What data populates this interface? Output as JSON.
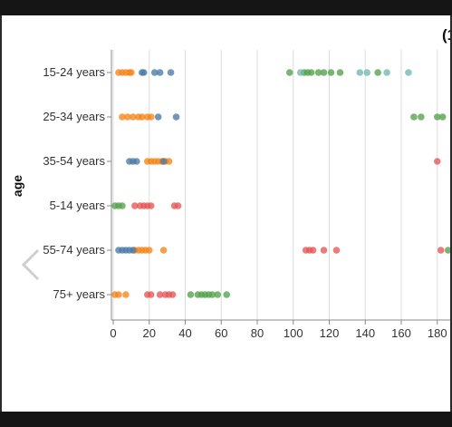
{
  "chart_data": {
    "type": "scatter",
    "title": "(1",
    "ylabel": "age",
    "xlabel": "",
    "x_ticks": [
      0,
      20,
      40,
      60,
      80,
      100,
      120,
      140,
      160,
      180
    ],
    "xlim": [
      0,
      188
    ],
    "grid": true,
    "categories": [
      "15-24 years",
      "25-34 years",
      "35-54 years",
      "5-14 years",
      "55-74 years",
      "75+ years"
    ],
    "series": [
      {
        "color": "#f58518",
        "points": [
          {
            "y": "15-24 years",
            "x": 3
          },
          {
            "y": "15-24 years",
            "x": 5
          },
          {
            "y": "15-24 years",
            "x": 7
          },
          {
            "y": "15-24 years",
            "x": 9
          },
          {
            "y": "15-24 years",
            "x": 10
          },
          {
            "y": "25-34 years",
            "x": 5
          },
          {
            "y": "25-34 years",
            "x": 8
          },
          {
            "y": "25-34 years",
            "x": 11
          },
          {
            "y": "25-34 years",
            "x": 14
          },
          {
            "y": "25-34 years",
            "x": 16
          },
          {
            "y": "25-34 years",
            "x": 19
          },
          {
            "y": "25-34 years",
            "x": 21
          },
          {
            "y": "35-54 years",
            "x": 19
          },
          {
            "y": "35-54 years",
            "x": 21
          },
          {
            "y": "35-54 years",
            "x": 23
          },
          {
            "y": "35-54 years",
            "x": 25
          },
          {
            "y": "35-54 years",
            "x": 27
          },
          {
            "y": "35-54 years",
            "x": 29
          },
          {
            "y": "35-54 years",
            "x": 31
          },
          {
            "y": "55-74 years",
            "x": 12
          },
          {
            "y": "55-74 years",
            "x": 14
          },
          {
            "y": "55-74 years",
            "x": 16
          },
          {
            "y": "55-74 years",
            "x": 18
          },
          {
            "y": "55-74 years",
            "x": 20
          },
          {
            "y": "55-74 years",
            "x": 28
          },
          {
            "y": "75+ years",
            "x": 1
          },
          {
            "y": "75+ years",
            "x": 3
          },
          {
            "y": "75+ years",
            "x": 7
          }
        ]
      },
      {
        "color": "#4c78a8",
        "points": [
          {
            "y": "15-24 years",
            "x": 16
          },
          {
            "y": "15-24 years",
            "x": 17
          },
          {
            "y": "15-24 years",
            "x": 23
          },
          {
            "y": "15-24 years",
            "x": 26
          },
          {
            "y": "15-24 years",
            "x": 32
          },
          {
            "y": "25-34 years",
            "x": 25
          },
          {
            "y": "25-34 years",
            "x": 35
          },
          {
            "y": "35-54 years",
            "x": 9
          },
          {
            "y": "35-54 years",
            "x": 11
          },
          {
            "y": "35-54 years",
            "x": 13
          },
          {
            "y": "35-54 years",
            "x": 28
          },
          {
            "y": "55-74 years",
            "x": 3
          },
          {
            "y": "55-74 years",
            "x": 5
          },
          {
            "y": "55-74 years",
            "x": 7
          },
          {
            "y": "55-74 years",
            "x": 9
          },
          {
            "y": "55-74 years",
            "x": 11
          }
        ]
      },
      {
        "color": "#54a24b",
        "points": [
          {
            "y": "15-24 years",
            "x": 98
          },
          {
            "y": "15-24 years",
            "x": 106
          },
          {
            "y": "15-24 years",
            "x": 108
          },
          {
            "y": "15-24 years",
            "x": 110
          },
          {
            "y": "15-24 years",
            "x": 114
          },
          {
            "y": "15-24 years",
            "x": 117
          },
          {
            "y": "15-24 years",
            "x": 121
          },
          {
            "y": "15-24 years",
            "x": 126
          },
          {
            "y": "15-24 years",
            "x": 147
          },
          {
            "y": "25-34 years",
            "x": 167
          },
          {
            "y": "25-34 years",
            "x": 171
          },
          {
            "y": "25-34 years",
            "x": 180
          },
          {
            "y": "25-34 years",
            "x": 183
          },
          {
            "y": "5-14 years",
            "x": 1
          },
          {
            "y": "5-14 years",
            "x": 3
          },
          {
            "y": "5-14 years",
            "x": 5
          },
          {
            "y": "55-74 years",
            "x": 186
          },
          {
            "y": "75+ years",
            "x": 43
          },
          {
            "y": "75+ years",
            "x": 47
          },
          {
            "y": "75+ years",
            "x": 49
          },
          {
            "y": "75+ years",
            "x": 51
          },
          {
            "y": "75+ years",
            "x": 53
          },
          {
            "y": "75+ years",
            "x": 55
          },
          {
            "y": "75+ years",
            "x": 58
          },
          {
            "y": "75+ years",
            "x": 63
          }
        ]
      },
      {
        "color": "#72b7b2",
        "points": [
          {
            "y": "15-24 years",
            "x": 104
          },
          {
            "y": "15-24 years",
            "x": 137
          },
          {
            "y": "15-24 years",
            "x": 141
          },
          {
            "y": "15-24 years",
            "x": 152
          },
          {
            "y": "15-24 years",
            "x": 164
          }
        ]
      },
      {
        "color": "#e45756",
        "points": [
          {
            "y": "35-54 years",
            "x": 180
          },
          {
            "y": "5-14 years",
            "x": 12
          },
          {
            "y": "5-14 years",
            "x": 15
          },
          {
            "y": "5-14 years",
            "x": 17
          },
          {
            "y": "5-14 years",
            "x": 19
          },
          {
            "y": "5-14 years",
            "x": 21
          },
          {
            "y": "5-14 years",
            "x": 34
          },
          {
            "y": "5-14 years",
            "x": 36
          },
          {
            "y": "55-74 years",
            "x": 107
          },
          {
            "y": "55-74 years",
            "x": 109
          },
          {
            "y": "55-74 years",
            "x": 111
          },
          {
            "y": "55-74 years",
            "x": 117
          },
          {
            "y": "55-74 years",
            "x": 124
          },
          {
            "y": "55-74 years",
            "x": 182
          },
          {
            "y": "75+ years",
            "x": 19
          },
          {
            "y": "75+ years",
            "x": 21
          },
          {
            "y": "75+ years",
            "x": 26
          },
          {
            "y": "75+ years",
            "x": 29
          },
          {
            "y": "75+ years",
            "x": 31
          },
          {
            "y": "75+ years",
            "x": 33
          }
        ]
      }
    ]
  },
  "nav": {
    "prev_icon": "chevron-left-icon"
  },
  "frame": {
    "bar_color": "#151515"
  }
}
